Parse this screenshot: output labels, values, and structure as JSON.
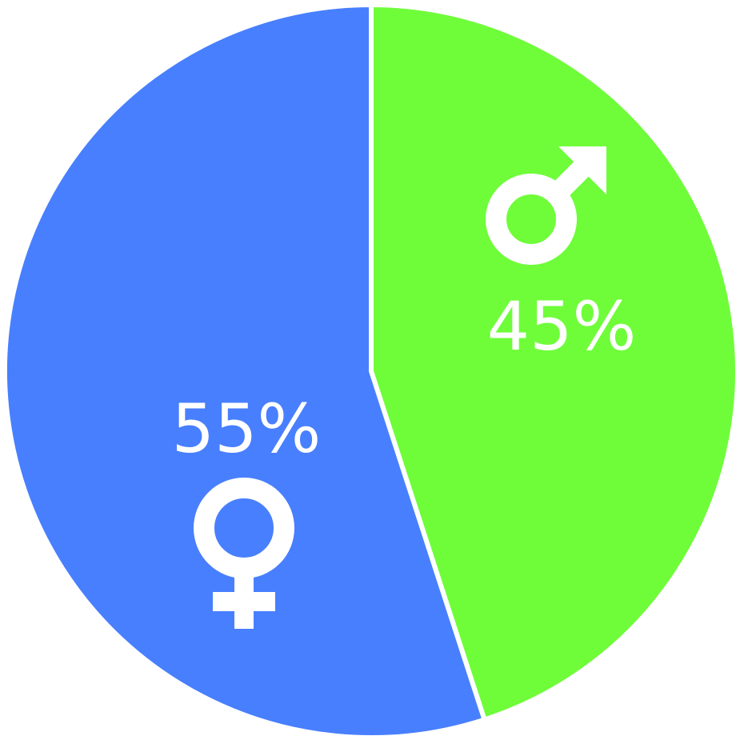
{
  "chart_data": {
    "type": "pie",
    "slices": [
      {
        "value": 45,
        "label": "45%",
        "color": "#6ffd3a",
        "icon": "male-symbol-icon"
      },
      {
        "value": 55,
        "label": "55%",
        "color": "#487ffe",
        "icon": "female-symbol-icon"
      }
    ],
    "start_angle": "top",
    "direction": "clockwise",
    "legend": "none"
  }
}
